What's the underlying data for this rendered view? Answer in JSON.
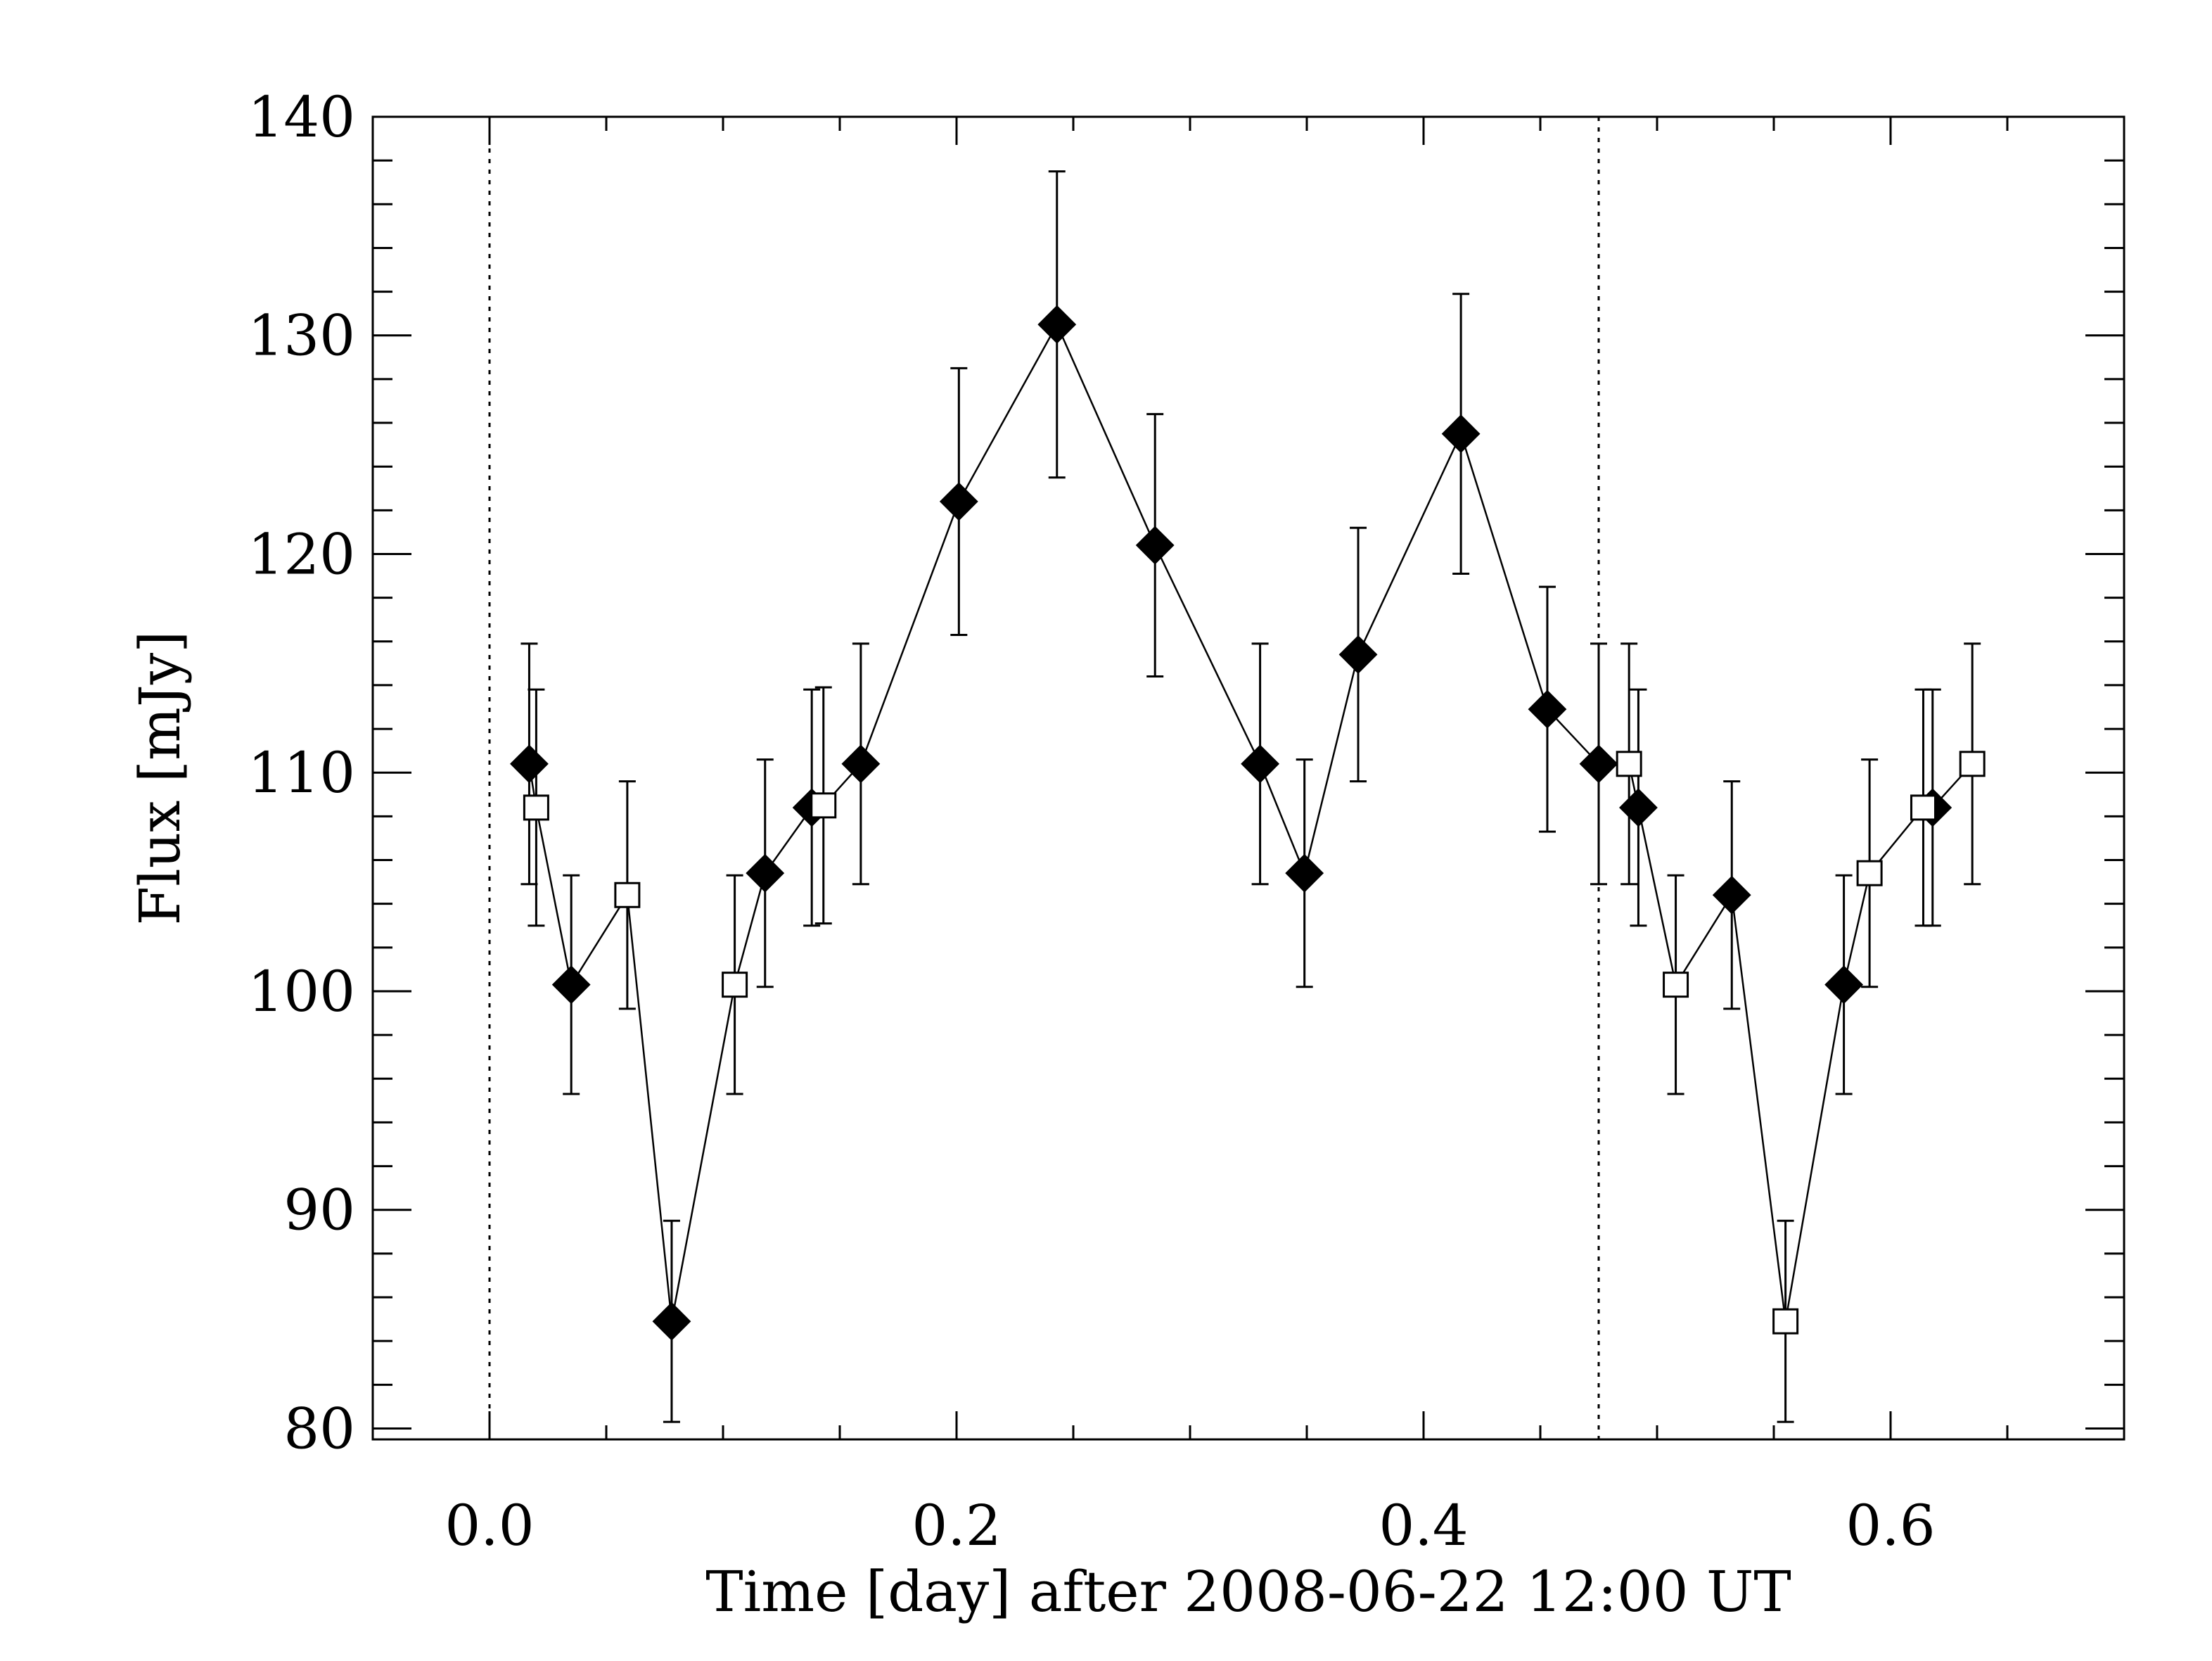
{
  "chart_data": {
    "type": "scatter",
    "title": "",
    "xlabel": "Time [day] after 2008-06-22 12:00 UT",
    "ylabel": "Flux [mJy]",
    "xlim": [
      -0.05,
      0.7
    ],
    "ylim": [
      79.5,
      140.0
    ],
    "x_ticks": [
      0.0,
      0.2,
      0.4,
      0.6
    ],
    "x_tick_labels": [
      "0.0",
      "0.2",
      "0.4",
      "0.6"
    ],
    "y_ticks": [
      80,
      90,
      100,
      110,
      120,
      130,
      140
    ],
    "y_tick_labels": [
      "80",
      "90",
      "100",
      "110",
      "120",
      "130",
      "140"
    ],
    "vertical_lines": [
      0.0,
      0.475
    ],
    "series": [
      {
        "name": "filled diamonds",
        "marker": "diamond-filled",
        "connected": true,
        "x": [
          0.017,
          0.035,
          0.078,
          0.118,
          0.138,
          0.159,
          0.201,
          0.243,
          0.285,
          0.33,
          0.349,
          0.372,
          0.416,
          0.453,
          0.475,
          0.492,
          0.532,
          0.58,
          0.618
        ],
        "y": [
          110.4,
          100.3,
          84.9,
          105.4,
          108.4,
          110.4,
          122.4,
          130.5,
          120.4,
          110.4,
          105.4,
          115.4,
          125.5,
          112.9,
          110.4,
          108.4,
          104.4,
          100.3,
          108.4
        ],
        "err": [
          5.5,
          5.0,
          4.6,
          5.2,
          5.4,
          5.5,
          6.1,
          7.0,
          6.0,
          5.5,
          5.2,
          5.8,
          6.4,
          5.6,
          5.5,
          5.4,
          5.2,
          5.0,
          5.4
        ]
      },
      {
        "name": "open squares",
        "marker": "square-open",
        "connected": true,
        "x": [
          0.02,
          0.059,
          0.105,
          0.143,
          0.488,
          0.508,
          0.555,
          0.591,
          0.614,
          0.635
        ],
        "y": [
          108.4,
          104.4,
          100.3,
          108.5,
          110.4,
          100.3,
          84.9,
          105.4,
          108.4,
          110.4
        ],
        "err": [
          5.4,
          5.2,
          5.0,
          5.4,
          5.5,
          5.0,
          4.6,
          5.2,
          5.4,
          5.5
        ]
      }
    ]
  }
}
